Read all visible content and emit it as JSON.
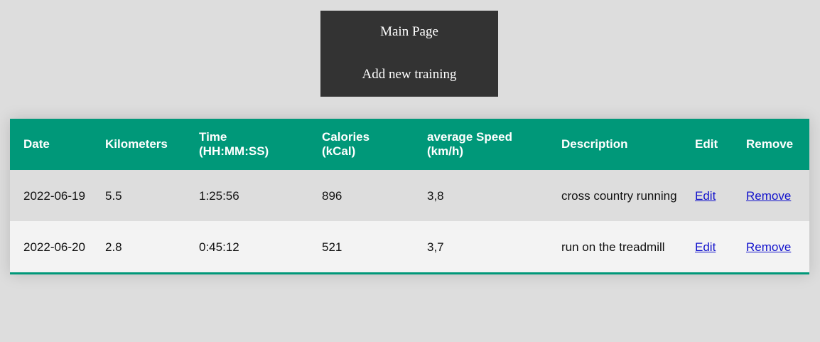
{
  "nav": {
    "main_page": "Main Page",
    "add_training": "Add new training"
  },
  "table": {
    "headers": {
      "date": "Date",
      "kilometers": "Kilometers",
      "time_line1": "Time",
      "time_line2": "(HH:MM:SS)",
      "calories_line1": "Calories",
      "calories_line2": "(kCal)",
      "speed_line1": "average Speed",
      "speed_line2": "(km/h)",
      "description": "Description",
      "edit": "Edit",
      "remove": "Remove"
    },
    "rows": [
      {
        "date": "2022-06-19",
        "kilometers": "5.5",
        "time": "1:25:56",
        "calories": "896",
        "speed": "3,8",
        "description": "cross country running",
        "edit": "Edit",
        "remove": "Remove"
      },
      {
        "date": "2022-06-20",
        "kilometers": "2.8",
        "time": "0:45:12",
        "calories": "521",
        "speed": "3,7",
        "description": "run on the treadmill",
        "edit": "Edit",
        "remove": "Remove"
      }
    ]
  },
  "colors": {
    "header_bg": "#009879",
    "nav_bg": "#333333",
    "page_bg": "#dddddd",
    "row_alt_bg": "#f3f3f3"
  }
}
